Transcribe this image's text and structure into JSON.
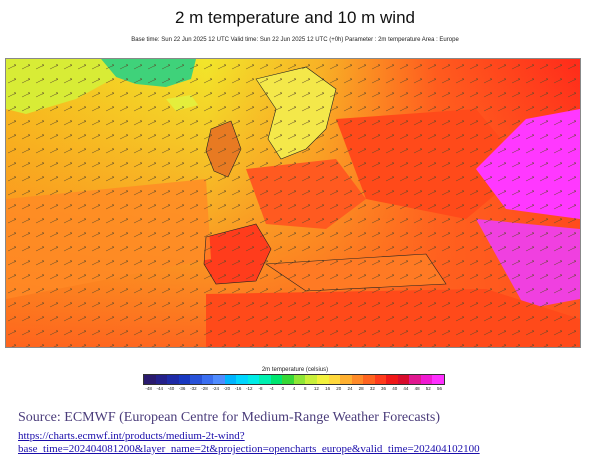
{
  "header": {
    "title": "2 m temperature and 10 m wind",
    "subtitle": "Base time: Sun 22 Jun 2025 12 UTC Valid time: Sun 22 Jun 2025 12 UTC (+0h) Parameter : 2m temperature Area : Europe"
  },
  "legend": {
    "title": "2m temperature (celsius)",
    "ticks": [
      "-48",
      "-44",
      "-40",
      "-36",
      "-32",
      "-28",
      "-24",
      "-20",
      "-16",
      "-12",
      "-8",
      "-4",
      "0",
      "4",
      "8",
      "12",
      "16",
      "20",
      "24",
      "28",
      "32",
      "36",
      "40",
      "44",
      "48",
      "52",
      "56"
    ],
    "colors": [
      "#2a1a6e",
      "#24208a",
      "#1e2aa6",
      "#1838c0",
      "#2852d8",
      "#3a6ef0",
      "#4f8cff",
      "#00b4ff",
      "#00d6ff",
      "#00ece6",
      "#00f0b0",
      "#00e670",
      "#36d836",
      "#8ee636",
      "#c8f03a",
      "#f2f23c",
      "#ffd83c",
      "#ffb030",
      "#ff8a28",
      "#ff6420",
      "#ff3c1c",
      "#f01818",
      "#d80c2c",
      "#e01890",
      "#f01ad2",
      "#ff30ff"
    ]
  },
  "source": {
    "text": "Source: ECMWF (European Centre for Medium-Range Weather Forecasts)",
    "link": "https://charts.ecmwf.int/products/medium-2t-wind?base_time=202404081200&layer_name=2t&projection=opencharts_europe&valid_time=202404102100"
  }
}
